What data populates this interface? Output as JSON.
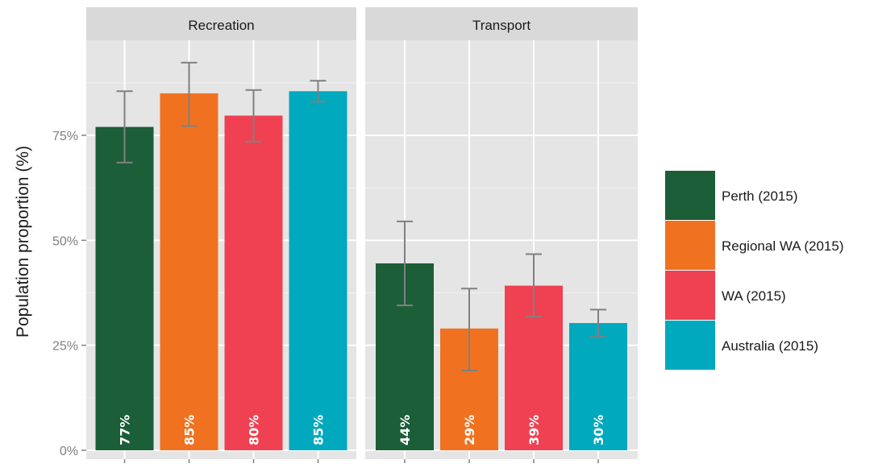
{
  "chart_data": {
    "type": "bar",
    "facets": [
      "Recreation",
      "Transport"
    ],
    "ylabel": "Population proportion (%)",
    "ylim": [
      0,
      1.0
    ],
    "yticks": [
      {
        "value": 0,
        "label": "0%"
      },
      {
        "value": 0.25,
        "label": "25%"
      },
      {
        "value": 0.5,
        "label": "50%"
      },
      {
        "value": 0.75,
        "label": "75%"
      }
    ],
    "grid": true,
    "legend_position": "right",
    "series": [
      {
        "name": "Perth (2015)",
        "color": "#1b5e38",
        "values": [
          0.77,
          0.445
        ],
        "error_low": [
          0.685,
          0.345
        ],
        "error_high": [
          0.855,
          0.545
        ],
        "labels": [
          "77%",
          "44%"
        ]
      },
      {
        "name": "Regional WA (2015)",
        "color": "#f07220",
        "values": [
          0.85,
          0.29
        ],
        "error_low": [
          0.772,
          0.19
        ],
        "error_high": [
          0.923,
          0.385
        ],
        "labels": [
          "85%",
          "29%"
        ]
      },
      {
        "name": "WA (2015)",
        "color": "#ef4152",
        "values": [
          0.797,
          0.392
        ],
        "error_low": [
          0.735,
          0.318
        ],
        "error_high": [
          0.858,
          0.467
        ],
        "labels": [
          "80%",
          "39%"
        ]
      },
      {
        "name": "Australia (2015)",
        "color": "#00a9bd",
        "values": [
          0.855,
          0.303
        ],
        "error_low": [
          0.83,
          0.27
        ],
        "error_high": [
          0.88,
          0.335
        ],
        "labels": [
          "85%",
          "30%"
        ]
      }
    ]
  }
}
